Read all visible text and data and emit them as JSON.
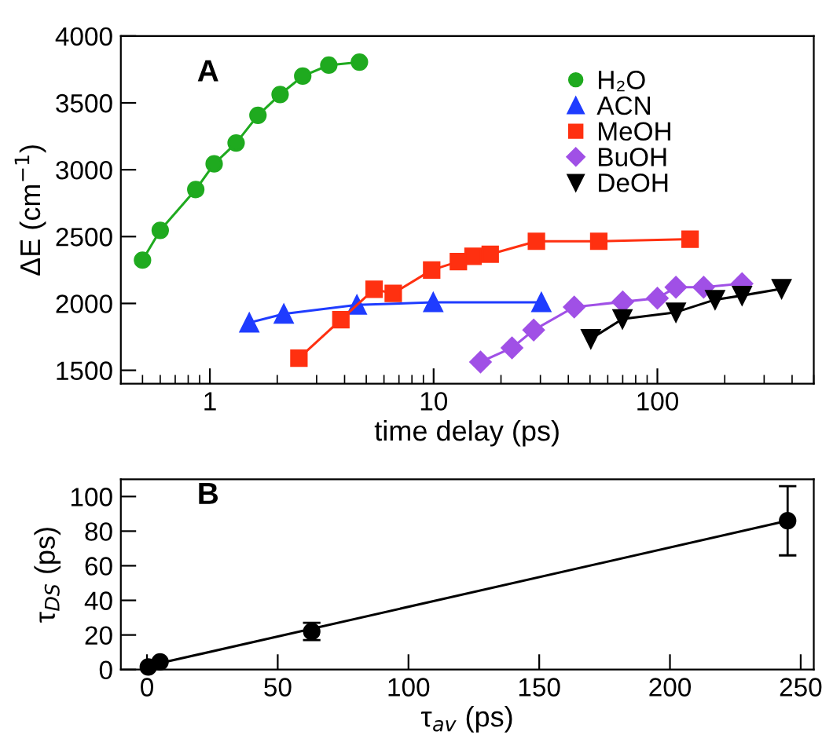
{
  "chart_data": [
    {
      "type": "line",
      "xlabel": "time delay (ps)",
      "ylabel": "ΔE (cm$^{−1}$)",
      "annotations": [
        "A"
      ],
      "log": "x",
      "xlim": [
        0.4,
        500
      ],
      "xticks": [
        1,
        10,
        100
      ],
      "ylim": [
        1400,
        4000
      ],
      "yticks": [
        1500,
        2000,
        2500,
        3000,
        3500,
        4000
      ],
      "legend": "top right",
      "grid": false,
      "series": [
        {
          "name": "H₂O",
          "color": "#1faa1f",
          "marker": "circle",
          "x": [
            0.5,
            0.6,
            0.865,
            1.045,
            1.31,
            1.64,
            2.06,
            2.6,
            3.4,
            4.66
          ],
          "values": [
            2324,
            2547,
            2852,
            3044,
            3200,
            3407,
            3563,
            3700,
            3782,
            3805
          ]
        },
        {
          "name": "ACN",
          "color": "#1f3cff",
          "marker": "triangle",
          "x": [
            1.5,
            2.14,
            4.54,
            9.96,
            30.3
          ],
          "values": [
            1856,
            1922,
            1989,
            2008,
            2008
          ]
        },
        {
          "name": "MeOH",
          "color": "#ff3010",
          "marker": "square",
          "x": [
            2.5,
            3.85,
            5.42,
            6.6,
            9.8,
            12.9,
            15,
            17.9,
            28.8,
            54.7,
            140
          ],
          "values": [
            1591,
            1879,
            2106,
            2075,
            2250,
            2313,
            2352,
            2368,
            2465,
            2465,
            2481
          ]
        },
        {
          "name": "BuOH",
          "color": "#a050e6",
          "marker": "diamond",
          "x": [
            16.2,
            22.4,
            28,
            42.5,
            70,
            100,
            121,
            161,
            239
          ],
          "values": [
            1562,
            1668,
            1801,
            1973,
            2012,
            2039,
            2121,
            2121,
            2148
          ]
        },
        {
          "name": "DeOH",
          "color": "#000000",
          "marker": "triangle_down",
          "x": [
            50.4,
            69.8,
            121,
            181,
            239,
            359
          ],
          "values": [
            1735,
            1884,
            1934,
            2028,
            2059,
            2110
          ]
        }
      ]
    },
    {
      "type": "scatter",
      "xlabel": "τ$_{av}$ (ps)",
      "ylabel": "τ$_{DS}$ (ps)",
      "annotations": [
        "B"
      ],
      "xlim": [
        -10,
        255
      ],
      "xticks": [
        0,
        50,
        100,
        150,
        200,
        250
      ],
      "ylim": [
        0,
        110
      ],
      "yticks": [
        0,
        20,
        40,
        60,
        80,
        100
      ],
      "legend": false,
      "grid": false,
      "series": [
        {
          "color": "#000000",
          "marker": "circle",
          "x": [
            0.5,
            5,
            63,
            245
          ],
          "values": [
            1.5,
            4.5,
            22,
            86
          ],
          "errors": [
            null,
            null,
            5,
            20
          ]
        },
        {
          "type": "line",
          "color": "#000000",
          "marker": "none",
          "x": [
            0,
            245
          ],
          "values": [
            2,
            86
          ]
        }
      ]
    }
  ]
}
